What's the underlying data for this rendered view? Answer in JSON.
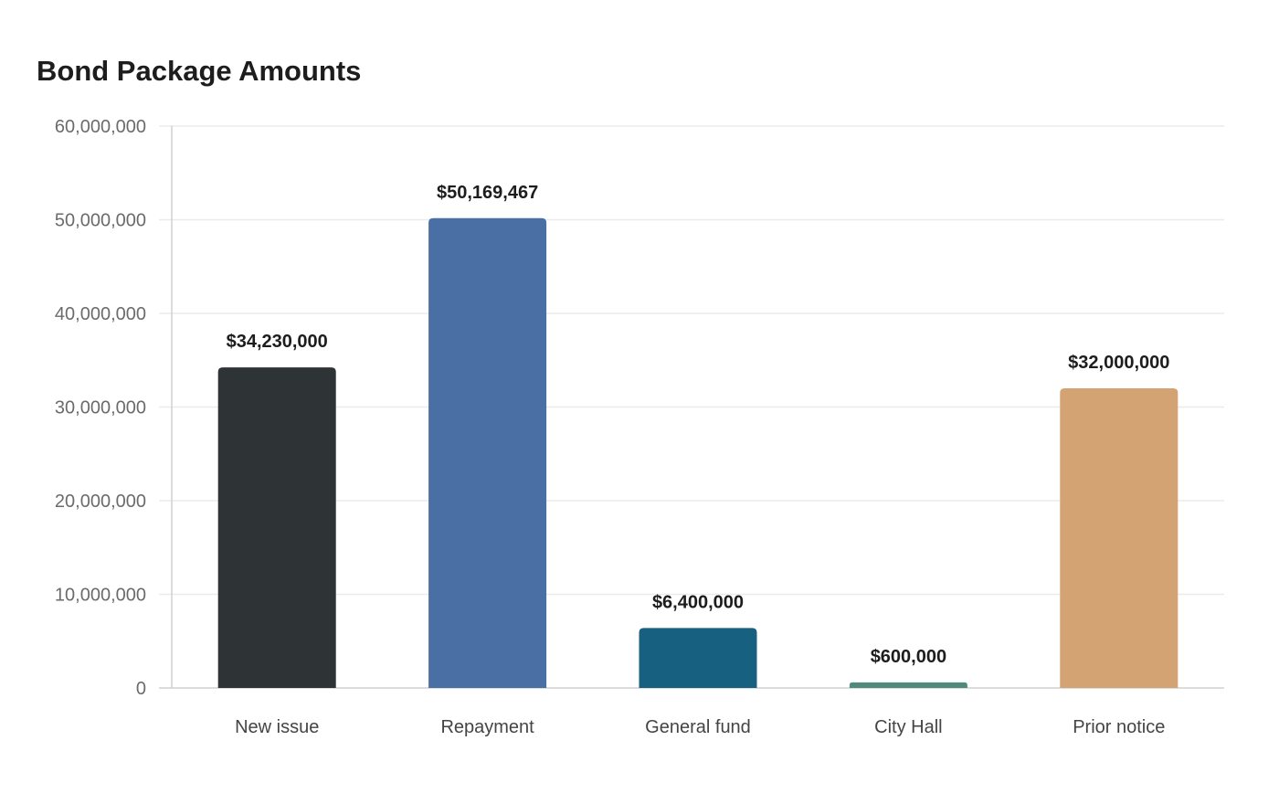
{
  "chart_data": {
    "type": "bar",
    "title": "Bond Package Amounts",
    "xlabel": "",
    "ylabel": "",
    "ylim": [
      0,
      60000000
    ],
    "yticks": [
      0,
      10000000,
      20000000,
      30000000,
      40000000,
      50000000,
      60000000
    ],
    "ytick_labels": [
      "0",
      "10,000,000",
      "20,000,000",
      "30,000,000",
      "40,000,000",
      "50,000,000",
      "60,000,000"
    ],
    "grid": true,
    "legend": "none",
    "categories": [
      "New issue",
      "Repayment",
      "General fund",
      "City Hall",
      "Prior notice"
    ],
    "values": [
      34230000,
      50169467,
      6400000,
      600000,
      32000000
    ],
    "value_labels": [
      "$34,230,000",
      "$50,169,467",
      "$6,400,000",
      "$600,000",
      "$32,000,000"
    ],
    "colors": [
      "#2e3436",
      "#4a6fa5",
      "#17607f",
      "#4f8a7a",
      "#d3a373"
    ]
  }
}
